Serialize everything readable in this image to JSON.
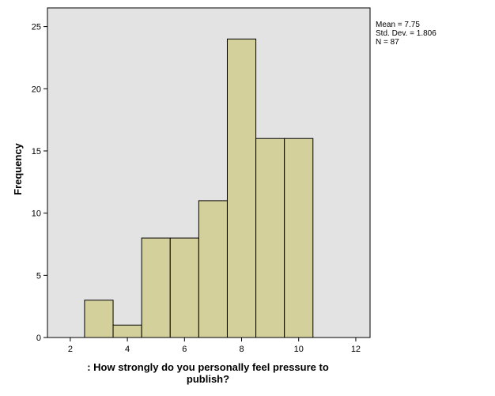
{
  "chart_data": {
    "type": "bar",
    "subtype": "histogram",
    "bin_width": 1,
    "bins": [
      {
        "x0": 2.5,
        "x1": 3.5,
        "value": 3
      },
      {
        "x0": 3.5,
        "x1": 4.5,
        "value": 1
      },
      {
        "x0": 4.5,
        "x1": 5.5,
        "value": 8
      },
      {
        "x0": 5.5,
        "x1": 6.5,
        "value": 8
      },
      {
        "x0": 6.5,
        "x1": 7.5,
        "value": 11
      },
      {
        "x0": 7.5,
        "x1": 8.5,
        "value": 24
      },
      {
        "x0": 8.5,
        "x1": 9.5,
        "value": 16
      },
      {
        "x0": 9.5,
        "x1": 10.5,
        "value": 16
      }
    ],
    "xlim": [
      1.2,
      12.5
    ],
    "ylim": [
      0,
      26.5
    ],
    "xticks": [
      2,
      4,
      6,
      8,
      10,
      12
    ],
    "yticks": [
      0,
      5,
      10,
      15,
      20,
      25
    ],
    "xlabel_lines": [
      ": How strongly do you personally feel pressure to",
      "publish?"
    ],
    "ylabel": "Frequency",
    "stats": [
      "Mean = 7.75",
      "Std. Dev. = 1.806",
      "N = 87"
    ],
    "grid": false,
    "bar_color": "#d3d09b",
    "plot_background": "#e3e3e3"
  }
}
